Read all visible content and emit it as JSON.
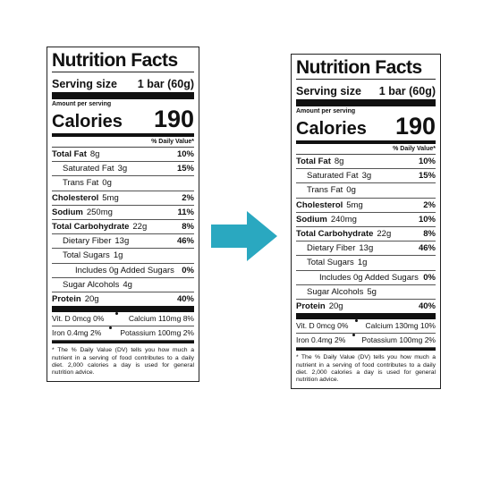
{
  "labels": [
    {
      "title": "Nutrition Facts",
      "serving_label": "Serving size",
      "serving_value": "1 bar (60g)",
      "amount_per_serving": "Amount per serving",
      "calories_label": "Calories",
      "calories_value": "190",
      "dv_header": "% Daily Value*",
      "rows": [
        {
          "name": "Total Fat",
          "amount": "8g",
          "dv": "10%"
        },
        {
          "name": "Saturated Fat",
          "amount": "3g",
          "dv": "15%"
        },
        {
          "name": "Trans Fat",
          "amount": "0g"
        },
        {
          "name": "Cholesterol",
          "amount": "5mg",
          "dv": "2%"
        },
        {
          "name": "Sodium",
          "amount": "250mg",
          "dv": "11%"
        },
        {
          "name": "Total Carbohydrate",
          "amount": "22g",
          "dv": "8%"
        },
        {
          "name": "Dietary Fiber",
          "amount": "13g",
          "dv": "46%"
        },
        {
          "name": "Total Sugars",
          "amount": "1g"
        },
        {
          "name": "Includes 0g Added Sugars",
          "dv": "0%"
        },
        {
          "name": "Sugar Alcohols",
          "amount": "4g"
        },
        {
          "name": "Protein",
          "amount": "20g",
          "dv": "40%"
        }
      ],
      "vitamins": [
        [
          "Vit. D 0mcg 0%",
          "Calcium 110mg 8%"
        ],
        [
          "Iron 0.4mg 2%",
          "Potassium 100mg 2%"
        ]
      ],
      "footnote": "* The % Daily Value (DV) tells you how much a nutrient in a serving of food contributes to a daily diet. 2,000 calories a day is used for general nutrition advice."
    },
    {
      "title": "Nutrition Facts",
      "serving_label": "Serving size",
      "serving_value": "1 bar (60g)",
      "amount_per_serving": "Amount per serving",
      "calories_label": "Calories",
      "calories_value": "190",
      "dv_header": "% Daily Value*",
      "rows": [
        {
          "name": "Total Fat",
          "amount": "8g",
          "dv": "10%"
        },
        {
          "name": "Saturated Fat",
          "amount": "3g",
          "dv": "15%"
        },
        {
          "name": "Trans Fat",
          "amount": "0g"
        },
        {
          "name": "Cholesterol",
          "amount": "5mg",
          "dv": "2%"
        },
        {
          "name": "Sodium",
          "amount": "240mg",
          "dv": "10%"
        },
        {
          "name": "Total Carbohydrate",
          "amount": "22g",
          "dv": "8%"
        },
        {
          "name": "Dietary Fiber",
          "amount": "13g",
          "dv": "46%"
        },
        {
          "name": "Total Sugars",
          "amount": "1g"
        },
        {
          "name": "Includes 0g Added Sugars",
          "dv": "0%"
        },
        {
          "name": "Sugar Alcohols",
          "amount": "5g"
        },
        {
          "name": "Protein",
          "amount": "20g",
          "dv": "40%"
        }
      ],
      "vitamins": [
        [
          "Vit. D 0mcg 0%",
          "Calcium 130mg 10%"
        ],
        [
          "Iron 0.4mg 2%",
          "Potassium 100mg 2%"
        ]
      ],
      "footnote": "* The % Daily Value (DV) tells you how much a nutrient in a serving of food contributes to a daily diet. 2,000 calories a day is used for general nutrition advice."
    }
  ]
}
